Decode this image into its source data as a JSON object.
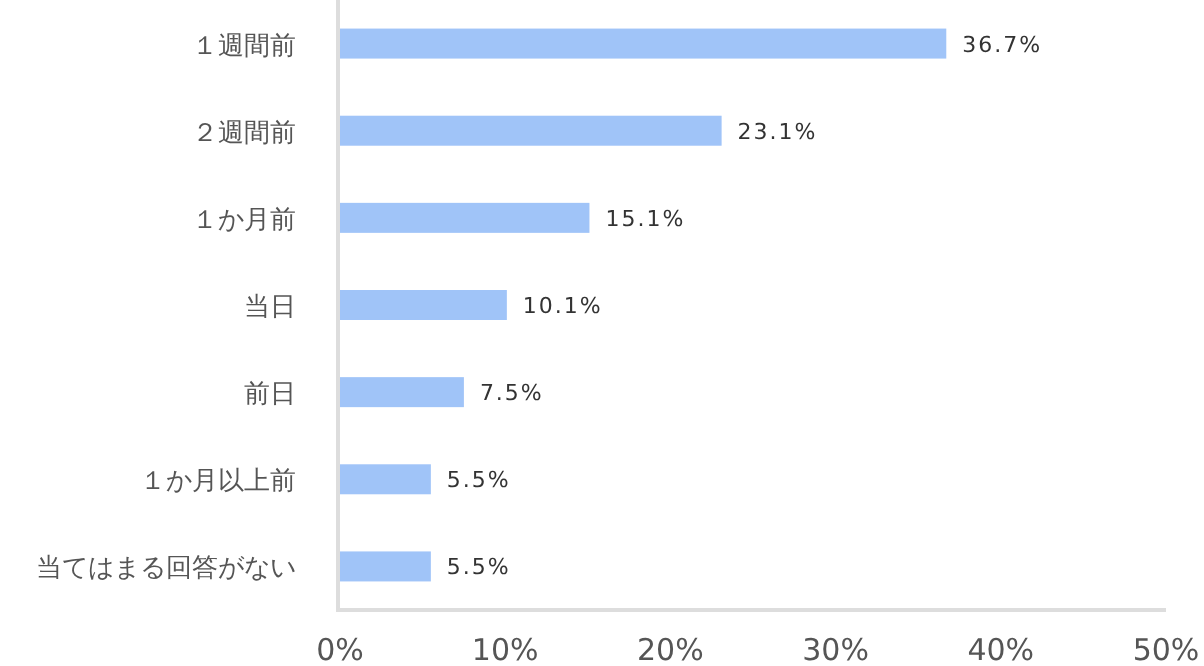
{
  "chart_data": {
    "type": "bar",
    "orientation": "horizontal",
    "categories": [
      "１週間前",
      "２週間前",
      "１か月前",
      "当日",
      "前日",
      "１か月以上前",
      "当てはまる回答がない"
    ],
    "values": [
      36.7,
      23.1,
      15.1,
      10.1,
      7.5,
      5.5,
      5.5
    ],
    "value_labels": [
      "36.7%",
      "23.1%",
      "15.1%",
      "10.1%",
      "7.5%",
      "5.5%",
      "5.5%"
    ],
    "color": "#a0c4f8",
    "xlim": [
      0,
      50
    ],
    "xticks": [
      {
        "value": 0,
        "label": "0%"
      },
      {
        "value": 10,
        "label": "10%"
      },
      {
        "value": 20,
        "label": "20%"
      },
      {
        "value": 30,
        "label": "30%"
      },
      {
        "value": 40,
        "label": "40%"
      },
      {
        "value": 50,
        "label": "50%"
      }
    ],
    "grid": false
  }
}
